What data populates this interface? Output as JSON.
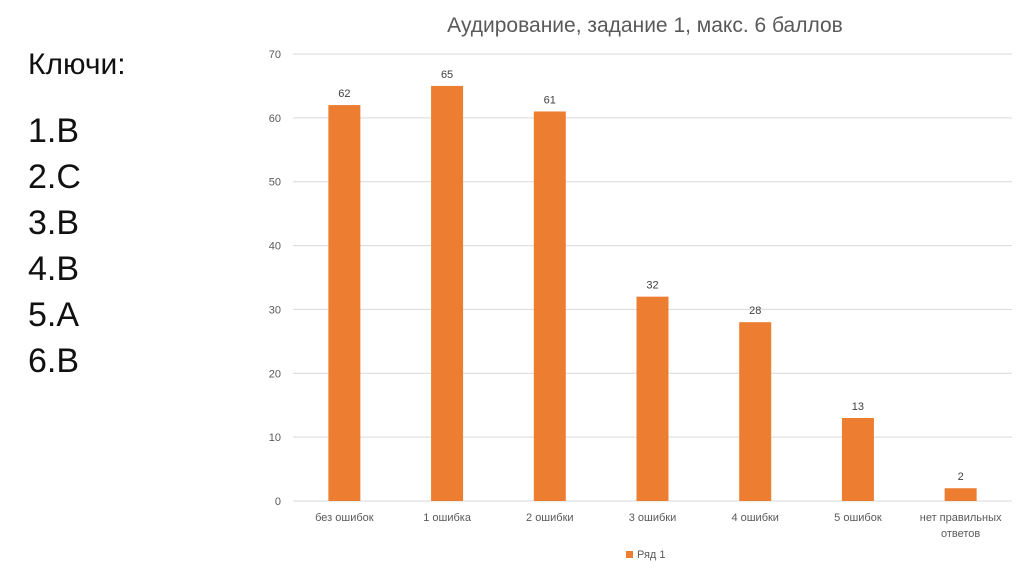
{
  "keys": {
    "title": "Ключи:",
    "items": [
      "1.B",
      "2.C",
      "3.B",
      "4.B",
      "5.A",
      "6.B"
    ]
  },
  "colors": {
    "bar": "#ED7D31",
    "grid": "#D9D9D9",
    "text": "#595959"
  },
  "chart_data": {
    "type": "bar",
    "title": "Аудирование, задание 1, макс. 6 баллов",
    "categories": [
      [
        "без ошибок"
      ],
      [
        "1 ошибка"
      ],
      [
        "2 ошибки"
      ],
      [
        "3 ошибки"
      ],
      [
        "4 ошибки"
      ],
      [
        "5 ошибок"
      ],
      [
        "нет правильных",
        "ответов"
      ]
    ],
    "series": [
      {
        "name": "Ряд 1",
        "values": [
          62,
          65,
          61,
          32,
          28,
          13,
          2
        ]
      }
    ],
    "xlabel": "",
    "ylabel": "",
    "ylim": [
      0,
      70
    ],
    "yticks": [
      0,
      10,
      20,
      30,
      40,
      50,
      60,
      70
    ],
    "grid": true,
    "legend_position": "bottom"
  }
}
